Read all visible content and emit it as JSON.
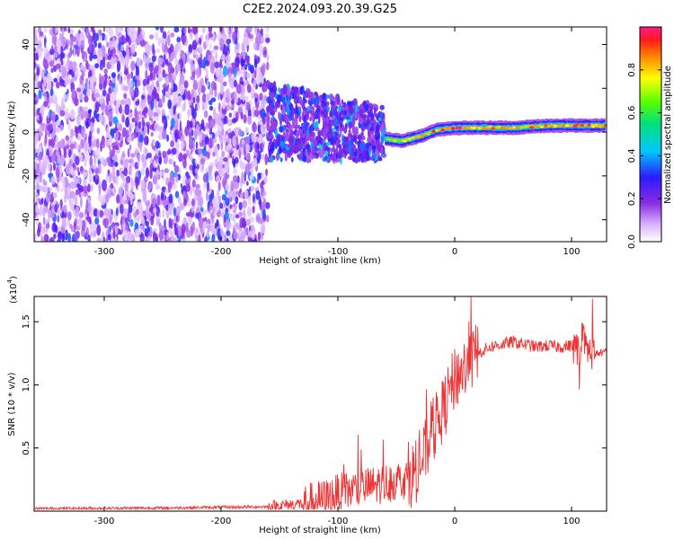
{
  "title": "C2E2.2024.093.20.39.G25",
  "chart_data": [
    {
      "type": "heatmap",
      "xlabel": "Height of straight line (km)",
      "ylabel": "Frequency (Hz)",
      "xlim": [
        -360,
        130
      ],
      "ylim": [
        -50,
        48
      ],
      "x_ticks": [
        -300,
        -200,
        -100,
        0,
        100
      ],
      "y_ticks": [
        -40,
        -20,
        0,
        20,
        40
      ],
      "colorbar": {
        "label": "Normalized spectral amplitude",
        "range": [
          0,
          1
        ],
        "ticks": [
          0.0,
          0.2,
          0.4,
          0.6,
          0.8
        ]
      },
      "noise_region": {
        "x": [
          -360,
          -160
        ],
        "freq": [
          -50,
          48
        ],
        "amplitude": 0.25
      },
      "transition_region": {
        "x": [
          -160,
          -60
        ],
        "freq": [
          -15,
          25
        ],
        "amplitude": 0.35
      },
      "signal_track": [
        {
          "x": -60,
          "freq": -3,
          "amplitude": 0.5
        },
        {
          "x": -45,
          "freq": -4,
          "amplitude": 0.75
        },
        {
          "x": -30,
          "freq": -2,
          "amplitude": 0.8
        },
        {
          "x": -15,
          "freq": 1,
          "amplitude": 0.85
        },
        {
          "x": 0,
          "freq": 2,
          "amplitude": 0.9
        },
        {
          "x": 20,
          "freq": 2,
          "amplitude": 0.85
        },
        {
          "x": 50,
          "freq": 2,
          "amplitude": 0.8
        },
        {
          "x": 80,
          "freq": 3,
          "amplitude": 0.85
        },
        {
          "x": 100,
          "freq": 3,
          "amplitude": 0.9
        },
        {
          "x": 130,
          "freq": 3,
          "amplitude": 0.85
        }
      ]
    },
    {
      "type": "line",
      "xlabel": "Height of straight line (km)",
      "ylabel": "SNR (10 * v/v)",
      "y_multiplier": "(x10",
      "y_multiplier_exp": "4",
      "xlim": [
        -360,
        130
      ],
      "ylim": [
        0,
        17000
      ],
      "x_ticks": [
        -300,
        -200,
        -100,
        0,
        100
      ],
      "y_ticks": [
        5000,
        10000,
        15000
      ],
      "y_tick_labels": [
        "0.5",
        "1.0",
        "1.5"
      ],
      "color": "#ee3333",
      "series": [
        {
          "x": [
            -360,
            -250,
            -160,
            -130,
            -110,
            -100,
            -90,
            -80,
            -70,
            -60,
            -50,
            -40,
            -30,
            -20,
            -10,
            0,
            10,
            20,
            30,
            40,
            50,
            60,
            70,
            80,
            90,
            100,
            105,
            110,
            115,
            120,
            130
          ],
          "values": [
            200,
            250,
            350,
            600,
            1000,
            1400,
            1600,
            1800,
            2000,
            2200,
            2400,
            2600,
            3500,
            6000,
            8000,
            10500,
            11500,
            12500,
            13000,
            13200,
            13400,
            13200,
            13000,
            13100,
            13000,
            13100,
            12800,
            13200,
            12600,
            12500,
            12600
          ]
        }
      ]
    }
  ]
}
